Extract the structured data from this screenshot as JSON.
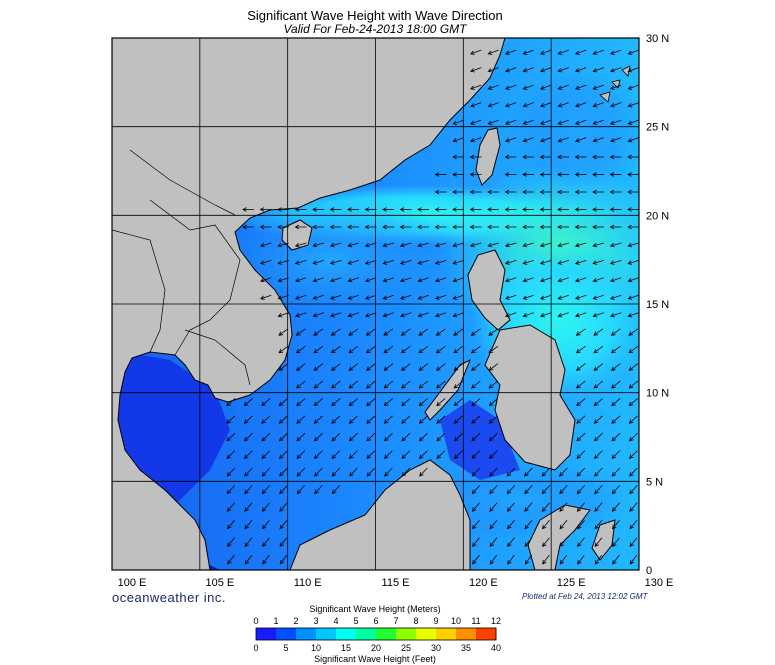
{
  "title": "Significant Wave Height with Wave Direction",
  "subtitle": "Valid For Feb-24-2013 18:00 GMT",
  "brand": "oceanweather inc.",
  "plotted_at": "Plotted at Feb 24, 2013 12:02 GMT",
  "axes": {
    "lon_labels": [
      "100 E",
      "105 E",
      "110 E",
      "115 E",
      "120 E",
      "125 E",
      "130 E"
    ],
    "lat_labels": [
      "30 N",
      "25 N",
      "20 N",
      "15 N",
      "10 N",
      "5 N",
      "0"
    ]
  },
  "legend": {
    "title_top": "Significant Wave Height (Meters)",
    "title_bottom": "Significant Wave Height (Feet)",
    "meters": [
      "0",
      "1",
      "2",
      "3",
      "4",
      "5",
      "6",
      "7",
      "8",
      "9",
      "10",
      "11",
      "12"
    ],
    "feet": [
      "0",
      "5",
      "10",
      "15",
      "20",
      "25",
      "30",
      "35",
      "40"
    ],
    "colors": [
      "#1a1aff",
      "#0050ff",
      "#0090ff",
      "#00c8ff",
      "#00ffee",
      "#00ffa0",
      "#20ff30",
      "#90ff00",
      "#e8ff00",
      "#ffd000",
      "#ff9000",
      "#ff4000"
    ]
  },
  "colors": {
    "land": "#c0c0c0",
    "sea_deep": "#0a1fd6",
    "sea_mid": "#1c7dff",
    "sea_light": "#27c8ff",
    "sea_cyan": "#2ff5f0"
  }
}
